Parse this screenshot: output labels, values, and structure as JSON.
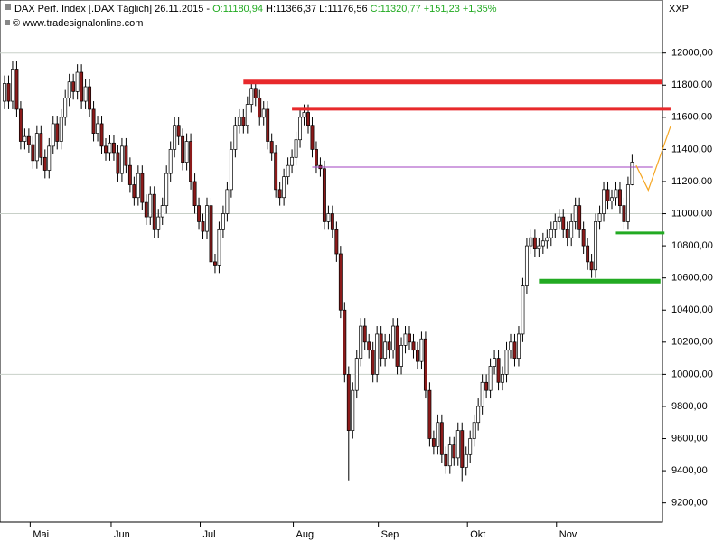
{
  "chart_data": {
    "type": "candlestick",
    "header": {
      "name": "DAX Perf. Index [.DAX  Täglich] 26.11.2015 - ",
      "open_text": "O:11180,94",
      "hl_text": " H:11366,37 L:11176,56 ",
      "close_text": "C:11320,77 +151,23 +1,35%"
    },
    "watermark": "© www.tradesignalonline.com",
    "corner_label": "XXP",
    "ylim": [
      9080,
      12330
    ],
    "yticks": [
      {
        "value": 9200,
        "label": "9200,00"
      },
      {
        "value": 9400,
        "label": "9400,00"
      },
      {
        "value": 9600,
        "label": "9600,00"
      },
      {
        "value": 9800,
        "label": "9800,00"
      },
      {
        "value": 10000,
        "label": "10000,00"
      },
      {
        "value": 10200,
        "label": "10200,00"
      },
      {
        "value": 10400,
        "label": "10400,00"
      },
      {
        "value": 10600,
        "label": "10600,00"
      },
      {
        "value": 10800,
        "label": "10800,00"
      },
      {
        "value": 11000,
        "label": "11000,00"
      },
      {
        "value": 11200,
        "label": "11200,00"
      },
      {
        "value": 11400,
        "label": "11400,00"
      },
      {
        "value": 11600,
        "label": "11600,00"
      },
      {
        "value": 11800,
        "label": "11800,00"
      },
      {
        "value": 12000,
        "label": "12000,00"
      }
    ],
    "grid_values": [
      10000,
      11000,
      12000
    ],
    "up_color": "#ffffff",
    "down_color": "#8b1a1a",
    "months": [
      {
        "label": "Mai",
        "first_candle": 7
      },
      {
        "label": "Jun",
        "first_candle": 27
      },
      {
        "label": "Jul",
        "first_candle": 49
      },
      {
        "label": "Aug",
        "first_candle": 72
      },
      {
        "label": "Sep",
        "first_candle": 93
      },
      {
        "label": "Okt",
        "first_candle": 115
      },
      {
        "label": "Nov",
        "first_candle": 137
      }
    ],
    "open": [
      11700,
      11810,
      11700,
      11900,
      11650,
      11450,
      11480,
      11430,
      11330,
      11500,
      11350,
      11270,
      11420,
      11560,
      11450,
      11600,
      11720,
      11820,
      11760,
      11880,
      11700,
      11790,
      11650,
      11500,
      11560,
      11420,
      11380,
      11440,
      11380,
      11250,
      11420,
      11300,
      11180,
      11100,
      11250,
      11070,
      10980,
      11120,
      10900,
      10980,
      11050,
      11250,
      11400,
      11550,
      11480,
      11320,
      11450,
      11200,
      11050,
      10950,
      10890,
      11050,
      10700,
      10680,
      10900,
      11000,
      11150,
      11400,
      11550,
      11600,
      11550,
      11680,
      11780,
      11720,
      11600,
      11650,
      11450,
      11380,
      11150,
      11100,
      11230,
      11300,
      11350,
      11460,
      11600,
      11630,
      11550,
      11400,
      11300,
      11280,
      10950,
      11000,
      10900,
      10750,
      10400,
      10000,
      9650,
      9900,
      10100,
      10300,
      10200,
      10150,
      10000,
      10250,
      10100,
      10200,
      10150,
      10300,
      10050,
      10180,
      10250,
      10200,
      10150,
      10080,
      10220,
      9900,
      9600,
      9550,
      9700,
      9500,
      9430,
      9560,
      9480,
      9650,
      9420,
      9500,
      9600,
      9700,
      9800,
      9950,
      9900,
      10050,
      10100,
      9950,
      10000,
      10150,
      10200,
      10100,
      10250,
      10550,
      10800,
      10850,
      10780,
      10800,
      10830,
      10850,
      10900,
      10950,
      10980,
      10900,
      10850,
      10950,
      11050,
      10900,
      10800,
      10700,
      10650,
      10950,
      11000,
      11150,
      11080,
      11100,
      11150,
      11050,
      10950,
      11180.94
    ],
    "high": [
      11860,
      11860,
      11950,
      11950,
      11700,
      11530,
      11530,
      11480,
      11550,
      11550,
      11400,
      11470,
      11610,
      11610,
      11650,
      11770,
      11870,
      11870,
      11930,
      11930,
      11840,
      11840,
      11700,
      11610,
      11610,
      11470,
      11490,
      11490,
      11430,
      11470,
      11470,
      11350,
      11230,
      11300,
      11300,
      11120,
      11170,
      11170,
      11030,
      11100,
      11300,
      11450,
      11600,
      11600,
      11530,
      11500,
      11500,
      11250,
      11100,
      11000,
      11100,
      11100,
      10750,
      10950,
      11050,
      11200,
      11450,
      11600,
      11650,
      11650,
      11730,
      11830,
      11830,
      11770,
      11700,
      11700,
      11500,
      11430,
      11200,
      11280,
      11350,
      11400,
      11510,
      11650,
      11680,
      11680,
      11600,
      11450,
      11350,
      11330,
      11050,
      11050,
      10950,
      10800,
      10450,
      10050,
      9950,
      10150,
      10350,
      10350,
      10250,
      10200,
      10300,
      10300,
      10250,
      10250,
      10350,
      10350,
      10230,
      10300,
      10300,
      10250,
      10200,
      10270,
      10270,
      9950,
      9650,
      9750,
      9750,
      9550,
      9610,
      9610,
      9700,
      9700,
      9550,
      9650,
      9750,
      9850,
      10000,
      10000,
      10100,
      10150,
      10150,
      10050,
      10200,
      10250,
      10250,
      10300,
      10600,
      10850,
      10900,
      10900,
      10850,
      10880,
      10900,
      10950,
      11000,
      11030,
      11030,
      10950,
      11000,
      11100,
      11100,
      10950,
      10850,
      10750,
      11000,
      11050,
      11200,
      11200,
      11150,
      11200,
      11200,
      11100,
      11230,
      11366.37
    ],
    "low": [
      11650,
      11650,
      11650,
      11600,
      11400,
      11400,
      11380,
      11280,
      11280,
      11300,
      11220,
      11220,
      11370,
      11400,
      11400,
      11550,
      11670,
      11710,
      11710,
      11650,
      11650,
      11600,
      11450,
      11450,
      11370,
      11330,
      11330,
      11330,
      11200,
      11200,
      11250,
      11130,
      11050,
      11050,
      11020,
      10930,
      10930,
      10850,
      10850,
      10930,
      11000,
      11200,
      11350,
      11430,
      11270,
      11270,
      11150,
      11000,
      10900,
      10840,
      10840,
      10650,
      10630,
      10630,
      10850,
      10950,
      11100,
      11350,
      11500,
      11500,
      11500,
      11630,
      11670,
      11550,
      11550,
      11400,
      11330,
      11100,
      11050,
      11050,
      11180,
      11250,
      11300,
      11410,
      11550,
      11500,
      11350,
      11250,
      11230,
      10900,
      10900,
      10850,
      10700,
      10350,
      9950,
      9340,
      9600,
      9850,
      10050,
      10150,
      10100,
      9950,
      9950,
      10050,
      10050,
      10100,
      10100,
      10000,
      10000,
      10130,
      10150,
      10100,
      10030,
      10030,
      9850,
      9550,
      9500,
      9500,
      9450,
      9380,
      9380,
      9430,
      9430,
      9330,
      9370,
      9450,
      9550,
      9650,
      9750,
      9850,
      9850,
      10000,
      9900,
      9900,
      9950,
      10100,
      10050,
      10050,
      10200,
      10500,
      10750,
      10730,
      10730,
      10750,
      10780,
      10800,
      10850,
      10900,
      10850,
      10800,
      10800,
      10900,
      10850,
      10750,
      10650,
      10600,
      10600,
      10900,
      10950,
      11030,
      11030,
      11050,
      11000,
      10900,
      10900,
      11176.56
    ],
    "close": [
      11810,
      11700,
      11900,
      11650,
      11450,
      11480,
      11430,
      11330,
      11500,
      11350,
      11270,
      11420,
      11560,
      11450,
      11600,
      11720,
      11820,
      11760,
      11880,
      11700,
      11790,
      11650,
      11500,
      11560,
      11420,
      11380,
      11440,
      11380,
      11250,
      11420,
      11300,
      11180,
      11100,
      11250,
      11070,
      10980,
      11120,
      10900,
      10980,
      11050,
      11250,
      11400,
      11550,
      11480,
      11320,
      11450,
      11200,
      11050,
      10950,
      10890,
      11050,
      10700,
      10680,
      10900,
      11000,
      11150,
      11400,
      11550,
      11600,
      11550,
      11680,
      11780,
      11720,
      11600,
      11650,
      11450,
      11380,
      11150,
      11100,
      11230,
      11300,
      11350,
      11460,
      11600,
      11630,
      11550,
      11400,
      11300,
      11280,
      10950,
      11000,
      10900,
      10750,
      10400,
      10000,
      9650,
      9900,
      10100,
      10300,
      10200,
      10150,
      10000,
      10250,
      10100,
      10200,
      10150,
      10300,
      10050,
      10180,
      10250,
      10200,
      10150,
      10080,
      10220,
      9900,
      9600,
      9550,
      9700,
      9500,
      9430,
      9560,
      9480,
      9650,
      9420,
      9500,
      9600,
      9700,
      9800,
      9950,
      9900,
      10050,
      10100,
      9950,
      10000,
      10150,
      10200,
      10100,
      10250,
      10550,
      10800,
      10850,
      10780,
      10800,
      10830,
      10850,
      10900,
      10950,
      10980,
      10900,
      10850,
      10950,
      11050,
      10900,
      10800,
      10700,
      10650,
      10950,
      11000,
      11150,
      11080,
      11100,
      11150,
      11050,
      10950,
      11180,
      11320.77
    ],
    "levels": [
      {
        "value": 11820,
        "color": "#e8292b",
        "width": 5,
        "start": 59,
        "end": 162.5
      },
      {
        "value": 11650,
        "color": "#e8292b",
        "width": 3,
        "start": 71,
        "end": 164.5
      },
      {
        "value": 11290,
        "color": "#a040c0",
        "width": 1,
        "start": 76,
        "end": 160
      },
      {
        "value": 10880,
        "color": "#22aa22",
        "width": 3,
        "start": 151,
        "end": 163
      },
      {
        "value": 10580,
        "color": "#22aa22",
        "width": 5,
        "start": 132,
        "end": 162
      }
    ],
    "projection": {
      "color": "#f5a623",
      "candles": [
        156,
        159,
        164.5
      ],
      "values": [
        11300,
        11147,
        11543
      ]
    }
  }
}
